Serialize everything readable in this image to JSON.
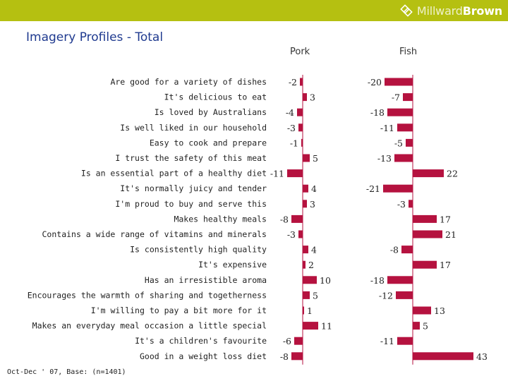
{
  "header": {
    "brand_name_light": "Millward",
    "brand_name_bold": "Brown",
    "bar_color": "#b5c011"
  },
  "title": "Imagery Profiles - Total",
  "footnote": "Oct-Dec ' 07, Base: (n=1401)",
  "colors": {
    "bar": "#b5123f",
    "baseline": "#b5123f",
    "text": "#222222",
    "title": "#1f3a8f"
  },
  "chart_data": {
    "type": "bar",
    "orientation": "horizontal",
    "title": "Imagery Profiles - Total",
    "categories": [
      "Are good for a variety of dishes",
      "It's delicious to eat",
      "Is loved by Australians",
      "Is well liked in our household",
      "Easy to cook and prepare",
      "I trust the safety of this meat",
      "Is an essential part of a healthy diet",
      "It's normally juicy and tender",
      "I'm proud to buy and serve this",
      "Makes healthy meals",
      "Contains a wide range of vitamins and minerals",
      "Is consistently high quality",
      "It's expensive",
      "Has an irresistible aroma",
      "Encourages the warmth of sharing and togetherness",
      "I'm willing to pay a bit more for it",
      "Makes an everyday meal occasion a little special",
      "It's a children's favourite",
      "Good in a weight loss diet"
    ],
    "series": [
      {
        "name": "Pork",
        "values": [
          -2,
          3,
          -4,
          -3,
          -1,
          5,
          -11,
          4,
          3,
          -8,
          -3,
          4,
          2,
          10,
          5,
          1,
          11,
          -6,
          -8
        ]
      },
      {
        "name": "Fish",
        "values": [
          -20,
          -7,
          -18,
          -11,
          -5,
          -13,
          22,
          -21,
          -3,
          17,
          21,
          -8,
          17,
          -18,
          -12,
          13,
          5,
          -11,
          43
        ]
      }
    ]
  }
}
